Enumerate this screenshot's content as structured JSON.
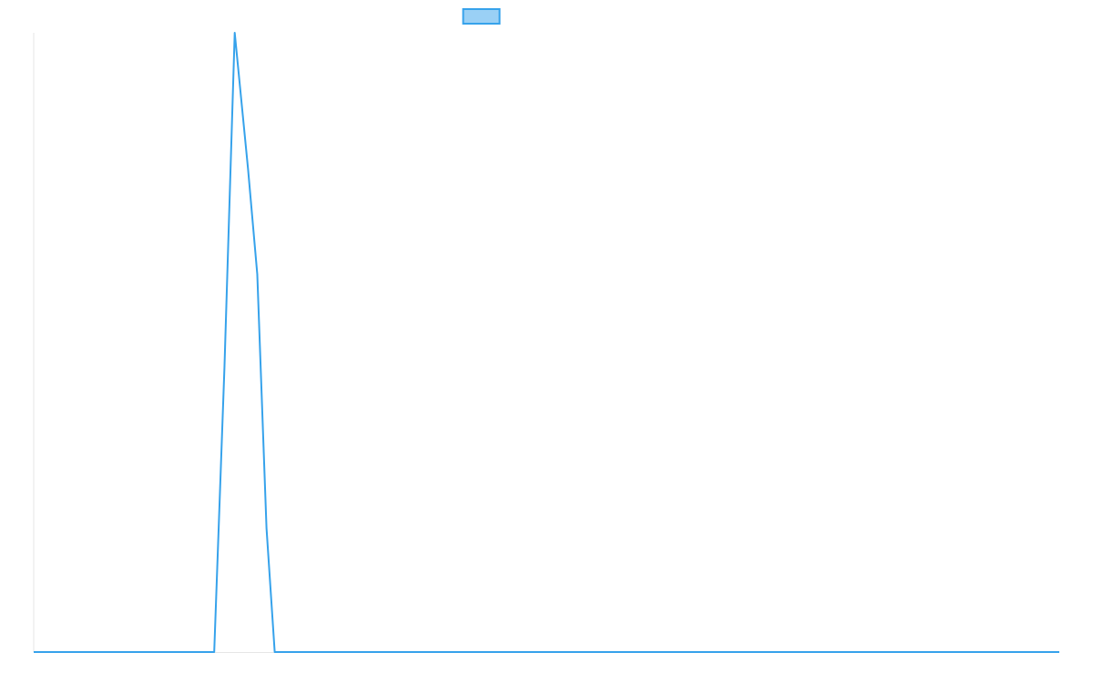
{
  "chart_data": {
    "type": "line",
    "x": [
      0,
      17.6,
      18.6,
      19.6,
      20.9,
      21.8,
      22.7,
      23.5,
      100
    ],
    "series": [
      {
        "color": "#36a2eb",
        "values": [
          0,
          0,
          46,
          100,
          78,
          61,
          20,
          0,
          0
        ]
      }
    ],
    "xlim": [
      0,
      100
    ],
    "ylim": [
      0,
      100
    ],
    "legend": "top",
    "grid": false
  }
}
